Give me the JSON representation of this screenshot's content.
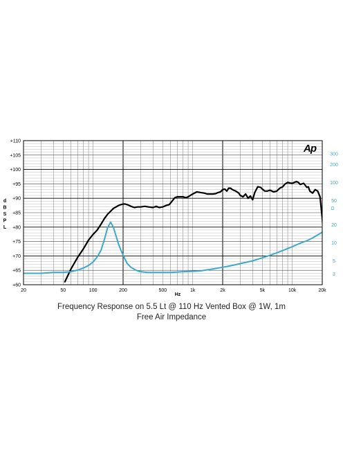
{
  "chart_data": {
    "type": "line",
    "logo": "Ap",
    "xlabel": "Hz",
    "ylabel_left": "dB SPL",
    "ylabel_right": "Ω",
    "xscale": "log",
    "xlim": [
      20,
      20000
    ],
    "ylim_left": [
      60,
      110
    ],
    "ylim_right": [
      2,
      500
    ],
    "yscale_right": "log",
    "grid": true,
    "x_ticks": [
      {
        "v": 20,
        "l": "20"
      },
      {
        "v": 50,
        "l": "50"
      },
      {
        "v": 100,
        "l": "100"
      },
      {
        "v": 200,
        "l": "200"
      },
      {
        "v": 500,
        "l": "500"
      },
      {
        "v": 1000,
        "l": "1k"
      },
      {
        "v": 2000,
        "l": "2k"
      },
      {
        "v": 5000,
        "l": "5k"
      },
      {
        "v": 10000,
        "l": "10k"
      },
      {
        "v": 20000,
        "l": "20k"
      }
    ],
    "y_ticks_left": [
      {
        "v": 60,
        "l": "+60"
      },
      {
        "v": 65,
        "l": "+65"
      },
      {
        "v": 70,
        "l": "+70"
      },
      {
        "v": 75,
        "l": "+75"
      },
      {
        "v": 80,
        "l": "+80"
      },
      {
        "v": 85,
        "l": "+85"
      },
      {
        "v": 90,
        "l": "+90"
      },
      {
        "v": 95,
        "l": "+95"
      },
      {
        "v": 100,
        "l": "+100"
      },
      {
        "v": 105,
        "l": "+105"
      },
      {
        "v": 110,
        "l": "+110"
      }
    ],
    "y_ticks_right": [
      {
        "v": 3,
        "l": "3"
      },
      {
        "v": 5,
        "l": "5"
      },
      {
        "v": 10,
        "l": "10"
      },
      {
        "v": 20,
        "l": "20"
      },
      {
        "v": 50,
        "l": "50"
      },
      {
        "v": 100,
        "l": "100"
      },
      {
        "v": 200,
        "l": "200"
      },
      {
        "v": 300,
        "l": "300"
      }
    ],
    "series": [
      {
        "axis": "left",
        "color": "#000000",
        "x": [
          52,
          60,
          70,
          80,
          90,
          100,
          110,
          120,
          130,
          140,
          150,
          160,
          170,
          180,
          190,
          200,
          210,
          220,
          240,
          260,
          280,
          300,
          330,
          360,
          400,
          430,
          460,
          500,
          540,
          580,
          620,
          660,
          700,
          750,
          800,
          850,
          900,
          950,
          1000,
          1100,
          1200,
          1300,
          1400,
          1500,
          1600,
          1700,
          1800,
          1900,
          2000,
          2100,
          2200,
          2300,
          2400,
          2500,
          2700,
          2900,
          3000,
          3200,
          3400,
          3600,
          3800,
          4000,
          4200,
          4500,
          4800,
          5000,
          5300,
          5600,
          6000,
          6500,
          7000,
          7500,
          8000,
          8500,
          9000,
          9500,
          10000,
          10500,
          11000,
          11500,
          12000,
          12500,
          13000,
          13500,
          14000,
          14500,
          15000,
          16000,
          17000,
          18000,
          19000,
          20000,
          21000
        ],
        "values": [
          61,
          65.5,
          69.5,
          72.5,
          75.5,
          77.5,
          79,
          81,
          83,
          84.5,
          85.5,
          86.5,
          87,
          87.5,
          87.8,
          88,
          88,
          87.8,
          87.2,
          86.8,
          87,
          87,
          87.2,
          87,
          86.8,
          87.2,
          86.8,
          87,
          87.5,
          87.8,
          89,
          90.2,
          90.5,
          90.5,
          90.5,
          90.2,
          90.5,
          91,
          91.5,
          92.2,
          92,
          91.8,
          91.5,
          91.5,
          91.5,
          91.6,
          92,
          92.2,
          93,
          93.2,
          92.5,
          93.5,
          93.5,
          93,
          92.5,
          91.8,
          91,
          90.5,
          91.5,
          90,
          90.8,
          89.5,
          92,
          94,
          93.8,
          93.2,
          92.5,
          92.5,
          92.8,
          92.2,
          92.5,
          93.5,
          94,
          95,
          95.5,
          95.3,
          95.2,
          95.5,
          95.8,
          95.5,
          94.8,
          95,
          95.2,
          94.5,
          93.8,
          94,
          92.5,
          91.8,
          93,
          92.5,
          90.5,
          83,
          73
        ]
      },
      {
        "axis": "right",
        "color": "#3ba8cc",
        "x": [
          20,
          30,
          40,
          50,
          60,
          70,
          80,
          90,
          100,
          110,
          120,
          130,
          140,
          150,
          160,
          170,
          180,
          190,
          200,
          210,
          220,
          240,
          260,
          280,
          300,
          350,
          400,
          450,
          500,
          600,
          700,
          800,
          1000,
          1200,
          1500,
          2000,
          2500,
          3000,
          4000,
          5000,
          6000,
          7000,
          8000,
          10000,
          12000,
          14000,
          16000,
          18000,
          20000
        ],
        "values": [
          3.1,
          3.1,
          3.2,
          3.2,
          3.3,
          3.5,
          3.8,
          4.2,
          4.8,
          5.8,
          7.5,
          11.5,
          18,
          22,
          18,
          13,
          9.5,
          7.5,
          6.2,
          5.2,
          4.5,
          3.9,
          3.6,
          3.4,
          3.3,
          3.2,
          3.2,
          3.2,
          3.2,
          3.2,
          3.25,
          3.3,
          3.35,
          3.4,
          3.6,
          3.9,
          4.2,
          4.5,
          5,
          5.6,
          6.2,
          6.8,
          7.4,
          8.6,
          9.8,
          10.8,
          12,
          13.5,
          15
        ]
      }
    ]
  },
  "caption": {
    "line1": "Frequency Response on 5.5 Lt @ 110 Hz Vented Box @ 1W, 1m",
    "line2": "Free Air Impedance"
  }
}
